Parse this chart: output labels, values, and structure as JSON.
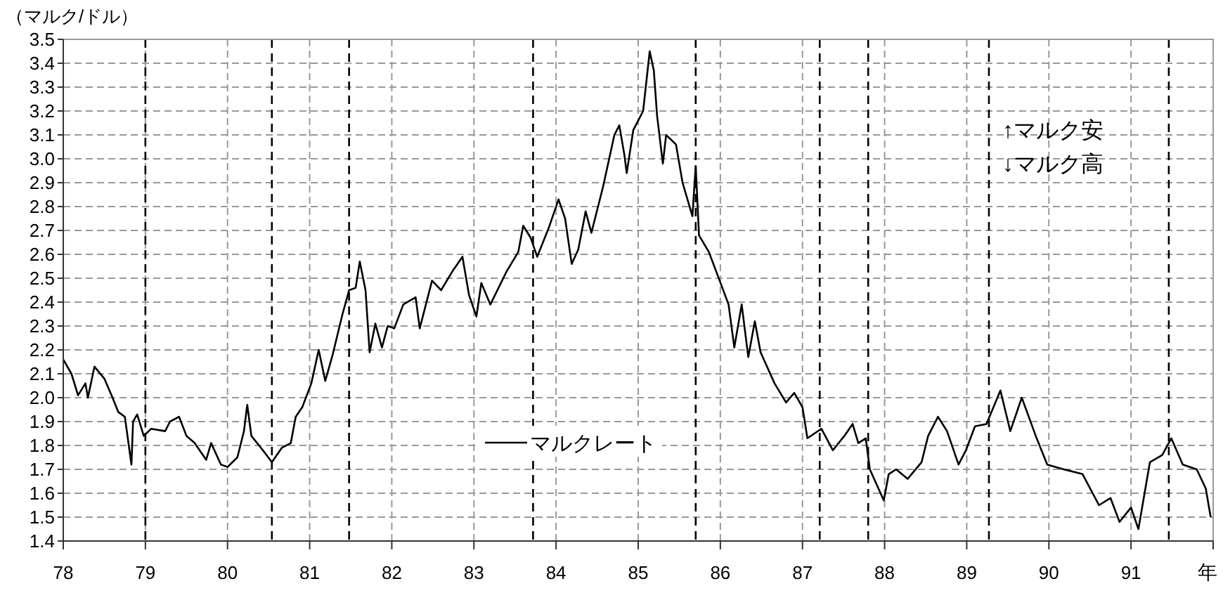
{
  "chart_data": {
    "type": "line",
    "ylabel": "（マルク/ドル）",
    "xlim": [
      1978,
      1992
    ],
    "ylim": [
      1.4,
      3.5
    ],
    "yticks": [
      1.4,
      1.5,
      1.6,
      1.7,
      1.8,
      1.9,
      {
        "value": 2,
        "label": "2.0"
      },
      2.1,
      2.2,
      2.3,
      2.4,
      2.5,
      2.6,
      2.7,
      2.8,
      2.9,
      {
        "value": 3,
        "label": "3.0"
      },
      3.1,
      3.2,
      3.3,
      3.4,
      3.5
    ],
    "xlabel": "年",
    "xticks": [
      {
        "value": 1978,
        "label": "78"
      },
      {
        "value": 1979,
        "label": "79"
      },
      {
        "value": 1980,
        "label": "80"
      },
      {
        "value": 1981,
        "label": "81"
      },
      {
        "value": 1982,
        "label": "82"
      },
      {
        "value": 1983,
        "label": "83"
      },
      {
        "value": 1984,
        "label": "84"
      },
      {
        "value": 1985,
        "label": "85"
      },
      {
        "value": 1986,
        "label": "86"
      },
      {
        "value": 1987,
        "label": "87"
      },
      {
        "value": 1988,
        "label": "88"
      },
      {
        "value": 1989,
        "label": "89"
      },
      {
        "value": 1990,
        "label": "90"
      },
      {
        "value": 1991,
        "label": "91"
      },
      {
        "value": 1992,
        "label": null
      }
    ],
    "grid": true,
    "legend": "bottom",
    "marker": "none",
    "line_style": "solid",
    "annotations": [
      "↑マルク安",
      "↓マルク高"
    ],
    "ref_lines": [
      {
        "axis": "x",
        "value": 1979.0,
        "color": "#000000",
        "line_style": "dashed"
      },
      {
        "axis": "x",
        "value": 1980.54,
        "color": "#000000",
        "line_style": "dashed"
      },
      {
        "axis": "x",
        "value": 1981.48,
        "color": "#000000",
        "line_style": "dashed"
      },
      {
        "axis": "x",
        "value": 1983.72,
        "color": "#000000",
        "line_style": "dashed"
      },
      {
        "axis": "x",
        "value": 1985.7,
        "color": "#000000",
        "line_style": "dashed"
      },
      {
        "axis": "x",
        "value": 1987.21,
        "color": "#000000",
        "line_style": "dashed"
      },
      {
        "axis": "x",
        "value": 1987.8,
        "color": "#000000",
        "line_style": "dashed"
      },
      {
        "axis": "x",
        "value": 1989.27,
        "color": "#000000",
        "line_style": "dashed"
      },
      {
        "axis": "x",
        "value": 1991.46,
        "color": "#000000",
        "line_style": "dashed"
      }
    ],
    "series": [
      {
        "name": "マルクレート",
        "color": "#000000",
        "x": [
          1978.0,
          1978.1,
          1978.18,
          1978.27,
          1978.3,
          1978.38,
          1978.5,
          1978.6,
          1978.67,
          1978.75,
          1978.83,
          1978.85,
          1978.9,
          1978.98,
          1979.07,
          1979.24,
          1979.3,
          1979.41,
          1979.5,
          1979.6,
          1979.74,
          1979.8,
          1979.92,
          1980.0,
          1980.12,
          1980.2,
          1980.24,
          1980.29,
          1980.43,
          1980.54,
          1980.66,
          1980.77,
          1980.83,
          1980.91,
          1981.02,
          1981.11,
          1981.19,
          1981.28,
          1981.4,
          1981.48,
          1981.56,
          1981.61,
          1981.68,
          1981.73,
          1981.8,
          1981.88,
          1981.95,
          1982.03,
          1982.14,
          1982.29,
          1982.34,
          1982.49,
          1982.6,
          1982.74,
          1982.86,
          1982.94,
          1983.03,
          1983.09,
          1983.2,
          1983.4,
          1983.54,
          1983.6,
          1983.69,
          1983.77,
          1983.91,
          1984.03,
          1984.11,
          1984.19,
          1984.27,
          1984.36,
          1984.43,
          1984.57,
          1984.71,
          1984.77,
          1984.83,
          1984.86,
          1984.94,
          1985.06,
          1985.14,
          1985.19,
          1985.23,
          1985.3,
          1985.34,
          1985.46,
          1985.54,
          1985.66,
          1985.7,
          1985.74,
          1985.86,
          1985.97,
          1986.1,
          1986.17,
          1986.26,
          1986.34,
          1986.42,
          1986.49,
          1986.66,
          1986.8,
          1986.9,
          1987.0,
          1987.06,
          1987.23,
          1987.37,
          1987.51,
          1987.61,
          1987.68,
          1987.77,
          1987.82,
          1987.99,
          1988.05,
          1988.14,
          1988.28,
          1988.45,
          1988.53,
          1988.65,
          1988.76,
          1988.9,
          1988.99,
          1989.1,
          1989.24,
          1989.41,
          1989.53,
          1989.67,
          1989.84,
          1989.98,
          1990.18,
          1990.41,
          1990.61,
          1990.75,
          1990.86,
          1991.0,
          1991.09,
          1991.23,
          1991.38,
          1991.49,
          1991.63,
          1991.8,
          1991.91,
          1991.97
        ],
        "values": [
          2.16,
          2.1,
          2.01,
          2.06,
          2.0,
          2.13,
          2.08,
          2.0,
          1.94,
          1.92,
          1.72,
          1.9,
          1.93,
          1.84,
          1.87,
          1.86,
          1.9,
          1.92,
          1.84,
          1.81,
          1.74,
          1.81,
          1.72,
          1.71,
          1.75,
          1.86,
          1.97,
          1.84,
          1.78,
          1.73,
          1.79,
          1.81,
          1.92,
          1.96,
          2.06,
          2.2,
          2.07,
          2.18,
          2.35,
          2.45,
          2.46,
          2.57,
          2.45,
          2.19,
          2.31,
          2.21,
          2.3,
          2.29,
          2.39,
          2.42,
          2.29,
          2.49,
          2.45,
          2.53,
          2.59,
          2.43,
          2.34,
          2.48,
          2.39,
          2.53,
          2.61,
          2.72,
          2.67,
          2.59,
          2.71,
          2.83,
          2.75,
          2.56,
          2.62,
          2.78,
          2.69,
          2.88,
          3.1,
          3.14,
          3.02,
          2.94,
          3.12,
          3.2,
          3.45,
          3.37,
          3.18,
          2.98,
          3.1,
          3.06,
          2.9,
          2.76,
          2.97,
          2.68,
          2.61,
          2.51,
          2.39,
          2.21,
          2.39,
          2.17,
          2.32,
          2.19,
          2.06,
          1.98,
          2.02,
          1.96,
          1.83,
          1.87,
          1.78,
          1.84,
          1.89,
          1.81,
          1.83,
          1.7,
          1.57,
          1.68,
          1.7,
          1.66,
          1.73,
          1.84,
          1.92,
          1.86,
          1.72,
          1.78,
          1.88,
          1.89,
          2.03,
          1.86,
          2.0,
          1.84,
          1.72,
          1.7,
          1.68,
          1.55,
          1.58,
          1.48,
          1.54,
          1.45,
          1.73,
          1.76,
          1.83,
          1.72,
          1.7,
          1.62,
          1.5
        ]
      }
    ]
  }
}
